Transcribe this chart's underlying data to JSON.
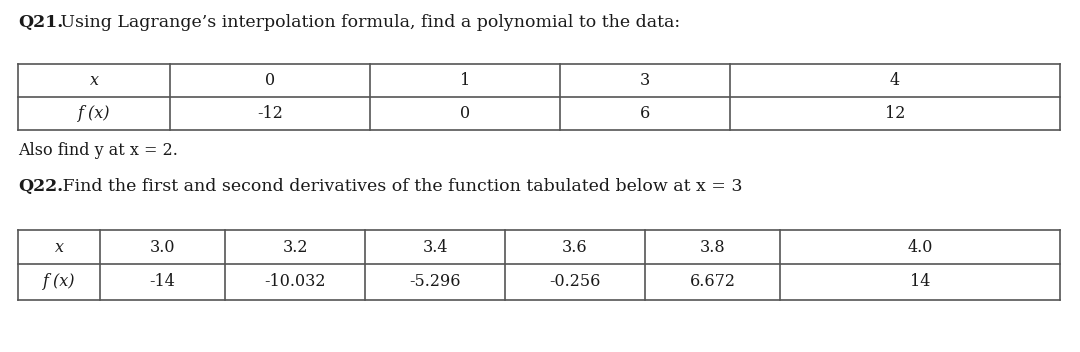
{
  "q21_title_bold": "Q21.",
  "q21_title_rest": " Using Lagrange’s interpolation formula, find a polynomial to the data:",
  "q21_x_label": "x",
  "q21_fx_label": "f (x)",
  "q21_x_values": [
    "0",
    "1",
    "3",
    "4"
  ],
  "q21_fx_values": [
    "-12",
    "0",
    "6",
    "12"
  ],
  "q21_also_italic": "y",
  "q21_also": "Also find  at  = 2.",
  "q21_also_full": "Also find y at x = 2.",
  "q22_title_bold": "Q22.",
  "q22_title_rest": " Find the first and second derivatives of the function tabulated below at x = 3",
  "q22_x_label": "x",
  "q22_fx_label": "f (x)",
  "q22_x_values": [
    "3.0",
    "3.2",
    "3.4",
    "3.6",
    "3.8",
    "4.0"
  ],
  "q22_fx_values": [
    "-14",
    "-10.032",
    "-5.296",
    "-0.256",
    "6.672",
    "14"
  ],
  "bg_color": "#ffffff",
  "text_color": "#1a1a1a",
  "line_color": "#555555",
  "font_size_title": 12.5,
  "font_size_table": 11.5,
  "font_size_also": 11.5
}
